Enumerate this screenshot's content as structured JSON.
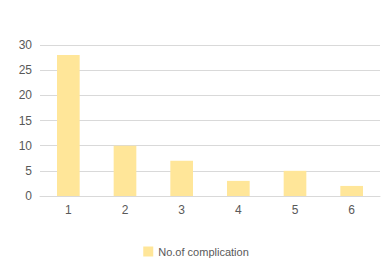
{
  "chart_data": {
    "type": "bar",
    "categories": [
      "1",
      "2",
      "3",
      "4",
      "5",
      "6"
    ],
    "series": [
      {
        "name": "No.of complication",
        "color": "#ffe699",
        "values": [
          28,
          10,
          7,
          3,
          5,
          2
        ]
      }
    ],
    "ylim": [
      0,
      30
    ],
    "yticks": [
      0,
      5,
      10,
      15,
      20,
      25,
      30
    ],
    "grid": true,
    "legend": "bottom"
  }
}
